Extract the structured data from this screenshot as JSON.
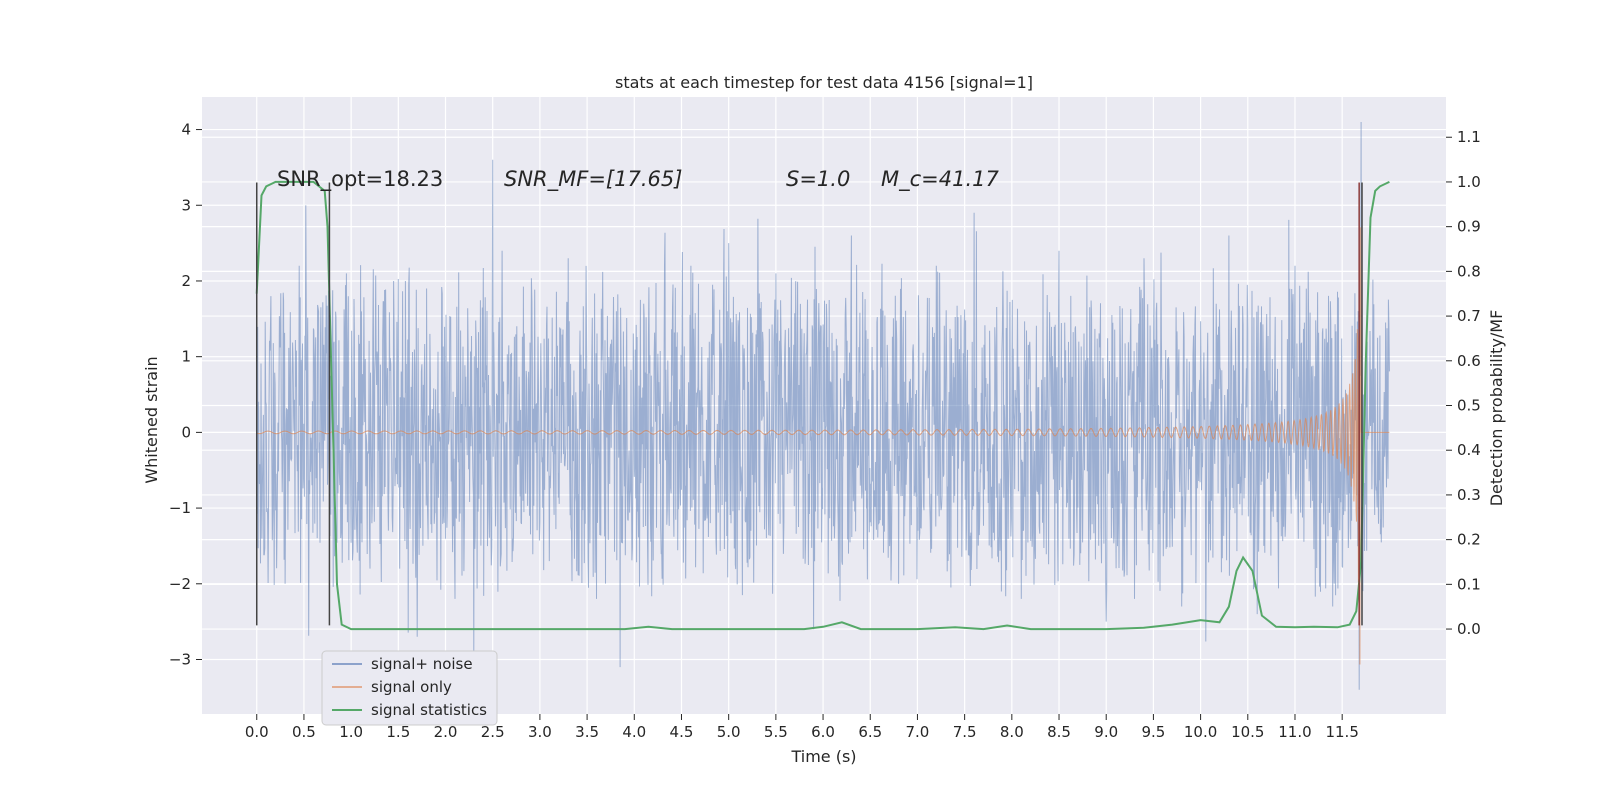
{
  "chart_data": {
    "type": "line",
    "title": "stats at each timestep for test data 4156 [signal=1]",
    "xlabel": "Time (s)",
    "ylabel": "Whitened strain",
    "y2label": "Detection probability/MF",
    "xlim": [
      -0.58,
      12.6
    ],
    "ylim": [
      -3.72,
      4.43
    ],
    "y2lim": [
      -0.19,
      1.19
    ],
    "xticks": [
      0.0,
      0.5,
      1.0,
      1.5,
      2.0,
      2.5,
      3.0,
      3.5,
      4.0,
      4.5,
      5.0,
      5.5,
      6.0,
      6.5,
      7.0,
      7.5,
      8.0,
      8.5,
      9.0,
      9.5,
      10.0,
      10.5,
      11.0,
      11.5
    ],
    "xtick_labels": [
      "0.0",
      "0.5",
      "1.0",
      "1.5",
      "2.0",
      "2.5",
      "3.0",
      "3.5",
      "4.0",
      "4.5",
      "5.0",
      "5.5",
      "6.0",
      "6.5",
      "7.0",
      "7.5",
      "8.0",
      "8.5",
      "9.0",
      "9.5",
      "10.0",
      "10.5",
      "11.0",
      "11.5"
    ],
    "yticks": [
      -3,
      -2,
      -1,
      0,
      1,
      2,
      3,
      4
    ],
    "ytick_labels": [
      "−3",
      "−2",
      "−1",
      "0",
      "1",
      "2",
      "3",
      "4"
    ],
    "y2ticks": [
      0.0,
      0.1,
      0.2,
      0.3,
      0.4,
      0.5,
      0.6,
      0.7,
      0.8,
      0.9,
      1.0,
      1.1
    ],
    "y2tick_labels": [
      "0.0",
      "0.1",
      "0.2",
      "0.3",
      "0.4",
      "0.5",
      "0.6",
      "0.7",
      "0.8",
      "0.9",
      "1.0",
      "1.1"
    ],
    "grid": true,
    "legend_position": "lower-left",
    "series": [
      {
        "name": "signal+ noise",
        "color": "#4c72b0",
        "axis": "left",
        "x_range": [
          0.0,
          12.0
        ],
        "band_lower": -1.5,
        "band_upper": 1.5,
        "spikes": [
          [
            0.15,
            1.8
          ],
          [
            0.3,
            -2.0
          ],
          [
            0.45,
            2.2
          ],
          [
            0.52,
            3.0
          ],
          [
            0.8,
            1.5
          ],
          [
            0.95,
            2.1
          ],
          [
            1.2,
            -1.8
          ],
          [
            1.45,
            2.0
          ],
          [
            1.7,
            -2.7
          ],
          [
            1.8,
            1.9
          ],
          [
            2.1,
            -2.2
          ],
          [
            2.3,
            -2.9
          ],
          [
            2.5,
            3.6
          ],
          [
            2.6,
            2.4
          ],
          [
            3.1,
            -1.7
          ],
          [
            3.3,
            2.3
          ],
          [
            3.6,
            -2.2
          ],
          [
            3.85,
            -3.1
          ],
          [
            4.1,
            1.7
          ],
          [
            4.6,
            2.2
          ],
          [
            5.0,
            2.5
          ],
          [
            5.5,
            2.1
          ],
          [
            5.9,
            -2.6
          ],
          [
            6.3,
            2.6
          ],
          [
            6.8,
            -2.0
          ],
          [
            7.2,
            2.2
          ],
          [
            7.6,
            2.9
          ],
          [
            8.1,
            -2.2
          ],
          [
            8.5,
            2.4
          ],
          [
            9.0,
            -2.5
          ],
          [
            9.4,
            2.3
          ],
          [
            9.8,
            -2.3
          ],
          [
            10.3,
            2.6
          ],
          [
            10.6,
            -2.4
          ],
          [
            11.0,
            2.2
          ],
          [
            11.4,
            -2.3
          ],
          [
            11.7,
            4.1
          ],
          [
            11.68,
            -3.4
          ]
        ]
      },
      {
        "name": "signal only",
        "color": "#dd8452",
        "axis": "left",
        "x_range": [
          0.0,
          12.0
        ],
        "merger_time": 11.7,
        "peak_amplitude": 3.2
      },
      {
        "name": "signal statistics",
        "color": "#55a868",
        "axis": "right",
        "points": [
          [
            0.0,
            0.75
          ],
          [
            0.05,
            0.97
          ],
          [
            0.1,
            0.99
          ],
          [
            0.2,
            1.0
          ],
          [
            0.4,
            1.0
          ],
          [
            0.6,
            1.0
          ],
          [
            0.72,
            0.98
          ],
          [
            0.75,
            0.9
          ],
          [
            0.8,
            0.5
          ],
          [
            0.85,
            0.1
          ],
          [
            0.9,
            0.01
          ],
          [
            1.0,
            0.0
          ],
          [
            1.5,
            0.0
          ],
          [
            2.0,
            0.0
          ],
          [
            3.0,
            0.0
          ],
          [
            3.9,
            0.0
          ],
          [
            4.15,
            0.005
          ],
          [
            4.4,
            0.0
          ],
          [
            5.0,
            0.0
          ],
          [
            5.8,
            0.0
          ],
          [
            6.0,
            0.005
          ],
          [
            6.2,
            0.015
          ],
          [
            6.4,
            0.0
          ],
          [
            7.0,
            0.0
          ],
          [
            7.4,
            0.004
          ],
          [
            7.7,
            0.0
          ],
          [
            7.95,
            0.008
          ],
          [
            8.2,
            0.0
          ],
          [
            9.0,
            0.0
          ],
          [
            9.4,
            0.003
          ],
          [
            9.7,
            0.01
          ],
          [
            10.0,
            0.02
          ],
          [
            10.2,
            0.015
          ],
          [
            10.3,
            0.05
          ],
          [
            10.38,
            0.13
          ],
          [
            10.45,
            0.16
          ],
          [
            10.55,
            0.13
          ],
          [
            10.65,
            0.03
          ],
          [
            10.8,
            0.005
          ],
          [
            11.0,
            0.004
          ],
          [
            11.2,
            0.005
          ],
          [
            11.45,
            0.004
          ],
          [
            11.58,
            0.01
          ],
          [
            11.65,
            0.04
          ],
          [
            11.7,
            0.15
          ],
          [
            11.75,
            0.6
          ],
          [
            11.8,
            0.92
          ],
          [
            11.85,
            0.98
          ],
          [
            11.9,
            0.99
          ],
          [
            12.0,
            1.0
          ]
        ]
      }
    ],
    "vertical_markers": [
      {
        "x": 0.0,
        "y_from": -2.55,
        "y_to": 3.3,
        "color": "#444444"
      },
      {
        "x": 0.77,
        "y_from": -2.55,
        "y_to": 3.3,
        "color": "#444444"
      },
      {
        "x": 11.68,
        "y_from": -2.55,
        "y_to": 3.3,
        "color": "#8b3a3a"
      },
      {
        "x": 11.71,
        "y_from": -2.55,
        "y_to": 3.3,
        "color": "#444444"
      }
    ],
    "annotations": [
      {
        "text": "SNR_opt=18.23",
        "x": 0.2,
        "y": 3.3
      },
      {
        "text": "SNR_MF=[17.65]",
        "x": 2.6,
        "y": 3.3
      },
      {
        "text": "S=1.0",
        "x": 5.55,
        "y": 3.3
      },
      {
        "text": "M_c=41.17",
        "x": 6.55,
        "y": 3.3
      }
    ],
    "legend": [
      "signal+ noise",
      "signal only",
      "signal statistics"
    ]
  },
  "colors": {
    "plot_background": "#eaeaf2",
    "grid": "#ffffff",
    "text": "#262626"
  }
}
